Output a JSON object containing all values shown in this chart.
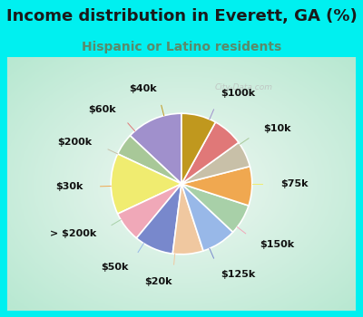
{
  "title": "Income distribution in Everett, GA (%)",
  "subtitle": "Hispanic or Latino residents",
  "watermark": "City-Data.com",
  "slices": [
    {
      "label": "$100k",
      "value": 13,
      "color": "#a090cc"
    },
    {
      "label": "$10k",
      "value": 5,
      "color": "#a8c898"
    },
    {
      "label": "$75k",
      "value": 14,
      "color": "#f0ec70"
    },
    {
      "label": "$150k",
      "value": 7,
      "color": "#f0a8b8"
    },
    {
      "label": "$125k",
      "value": 9,
      "color": "#7888cc"
    },
    {
      "label": "$20k",
      "value": 7,
      "color": "#f0c8a0"
    },
    {
      "label": "$50k",
      "value": 8,
      "color": "#98b8e8"
    },
    {
      "label": "> $200k",
      "value": 7,
      "color": "#a8d0a8"
    },
    {
      "label": "$30k",
      "value": 9,
      "color": "#f0a850"
    },
    {
      "label": "$200k",
      "value": 6,
      "color": "#c8c0a8"
    },
    {
      "label": "$60k",
      "value": 7,
      "color": "#e07878"
    },
    {
      "label": "$40k",
      "value": 8,
      "color": "#c0981e"
    }
  ],
  "label_fontsize": 8,
  "title_fontsize": 13,
  "subtitle_fontsize": 10,
  "title_color": "#1a1a1a",
  "subtitle_color": "#5a8a6a",
  "cyan_border": "#00f0f0",
  "chart_bg_center": "#f0f8f4",
  "chart_bg_edge": "#b8e8d0"
}
